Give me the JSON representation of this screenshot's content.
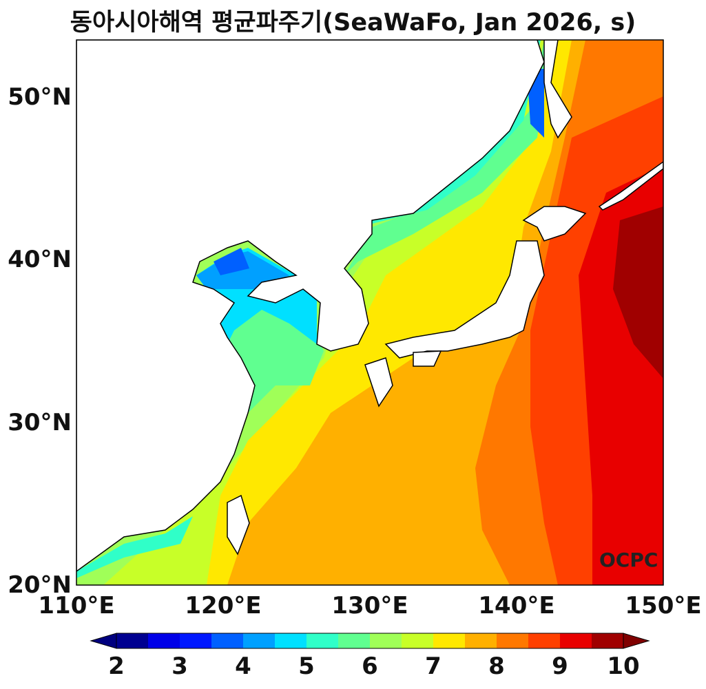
{
  "chart_data": {
    "type": "heatmap",
    "title": "동아시아해역 평균파주기(SeaWaFo, Jan 2026, s)",
    "x_ticks": [
      "110°E",
      "120°E",
      "130°E",
      "140°E",
      "150°E"
    ],
    "y_ticks": [
      "20°N",
      "30°N",
      "40°N",
      "50°N"
    ],
    "xlim": [
      110,
      150
    ],
    "ylim": [
      20,
      53.5
    ],
    "colorbar": {
      "ticks": [
        "2",
        "3",
        "4",
        "5",
        "6",
        "7",
        "8",
        "9",
        "10"
      ],
      "levels": [
        2,
        2.5,
        3,
        3.5,
        4,
        4.5,
        5,
        5.5,
        6,
        6.5,
        7,
        7.5,
        8,
        8.5,
        9,
        9.5,
        10
      ],
      "colors": [
        "#000090",
        "#0000e8",
        "#0018ff",
        "#0060ff",
        "#00a0ff",
        "#00e0ff",
        "#30ffc8",
        "#60ff90",
        "#a0ff58",
        "#c8ff28",
        "#ffe800",
        "#ffb000",
        "#ff7800",
        "#ff4000",
        "#e80000",
        "#a00000"
      ],
      "extend_low_color": "#00007f",
      "extend_high_color": "#800000"
    }
  },
  "logo": "OCPC"
}
